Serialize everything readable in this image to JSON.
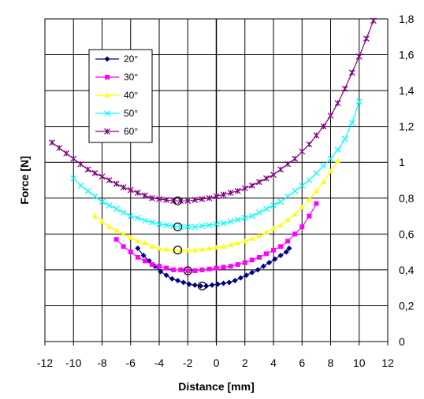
{
  "chart_data": {
    "type": "line",
    "xlabel": "Distance [mm]",
    "ylabel": "Force [N]",
    "xlim": [
      -12,
      12
    ],
    "ylim": [
      0,
      1.8
    ],
    "x_ticks": [
      -12,
      -10,
      -8,
      -6,
      -4,
      -2,
      0,
      2,
      4,
      6,
      8,
      10,
      12
    ],
    "y_ticks": [
      0,
      0.2,
      0.4,
      0.6,
      0.8,
      1,
      1.2,
      1.4,
      1.6,
      1.8
    ],
    "x_tick_labels": [
      "-12",
      "-10",
      "-8",
      "-6",
      "-4",
      "-2",
      "0",
      "2",
      "4",
      "6",
      "8",
      "10",
      "12"
    ],
    "y_tick_labels": [
      "0",
      "0,2",
      "0,4",
      "0,6",
      "0,8",
      "1",
      "1,2",
      "1,4",
      "1,6",
      "1,8"
    ],
    "grid": true,
    "legend_position": "top-left",
    "series": [
      {
        "name": "20°",
        "color": "#000080",
        "marker": "diamond",
        "min_marker": {
          "x": -1.0,
          "y": 0.31
        },
        "points": [
          [
            -5.5,
            0.52
          ],
          [
            -5.1,
            0.48
          ],
          [
            -4.7,
            0.45
          ],
          [
            -4.3,
            0.42
          ],
          [
            -3.9,
            0.39
          ],
          [
            -3.5,
            0.37
          ],
          [
            -3.1,
            0.35
          ],
          [
            -2.7,
            0.34
          ],
          [
            -2.3,
            0.33
          ],
          [
            -1.9,
            0.32
          ],
          [
            -1.5,
            0.315
          ],
          [
            -1.1,
            0.31
          ],
          [
            -0.7,
            0.31
          ],
          [
            -0.3,
            0.315
          ],
          [
            0.1,
            0.32
          ],
          [
            0.5,
            0.325
          ],
          [
            0.9,
            0.33
          ],
          [
            1.3,
            0.34
          ],
          [
            1.7,
            0.355
          ],
          [
            2.1,
            0.37
          ],
          [
            2.5,
            0.385
          ],
          [
            2.9,
            0.4
          ],
          [
            3.3,
            0.42
          ],
          [
            3.7,
            0.44
          ],
          [
            4.1,
            0.46
          ],
          [
            4.5,
            0.48
          ],
          [
            4.9,
            0.5
          ],
          [
            5.1,
            0.52
          ]
        ]
      },
      {
        "name": "30°",
        "color": "#ff00ff",
        "marker": "square",
        "min_marker": {
          "x": -2.0,
          "y": 0.395
        },
        "points": [
          [
            -7.0,
            0.57
          ],
          [
            -6.5,
            0.53
          ],
          [
            -6.0,
            0.5
          ],
          [
            -5.5,
            0.47
          ],
          [
            -5.0,
            0.45
          ],
          [
            -4.5,
            0.43
          ],
          [
            -4.0,
            0.42
          ],
          [
            -3.5,
            0.41
          ],
          [
            -3.0,
            0.4
          ],
          [
            -2.5,
            0.4
          ],
          [
            -2.0,
            0.395
          ],
          [
            -1.5,
            0.395
          ],
          [
            -1.0,
            0.4
          ],
          [
            -0.5,
            0.405
          ],
          [
            0.0,
            0.41
          ],
          [
            0.5,
            0.415
          ],
          [
            1.0,
            0.42
          ],
          [
            1.5,
            0.43
          ],
          [
            2.0,
            0.44
          ],
          [
            2.5,
            0.455
          ],
          [
            3.0,
            0.47
          ],
          [
            3.5,
            0.49
          ],
          [
            4.0,
            0.51
          ],
          [
            4.5,
            0.53
          ],
          [
            5.0,
            0.56
          ],
          [
            5.5,
            0.6
          ],
          [
            6.0,
            0.64
          ],
          [
            6.5,
            0.7
          ],
          [
            7.0,
            0.77
          ]
        ]
      },
      {
        "name": "40°",
        "color": "#ffff00",
        "marker": "triangle",
        "min_marker": {
          "x": -2.7,
          "y": 0.51
        },
        "points": [
          [
            -8.5,
            0.7
          ],
          [
            -8.0,
            0.67
          ],
          [
            -7.5,
            0.64
          ],
          [
            -7.0,
            0.62
          ],
          [
            -6.5,
            0.6
          ],
          [
            -6.0,
            0.58
          ],
          [
            -5.5,
            0.56
          ],
          [
            -5.0,
            0.55
          ],
          [
            -4.5,
            0.53
          ],
          [
            -4.0,
            0.52
          ],
          [
            -3.5,
            0.515
          ],
          [
            -3.0,
            0.51
          ],
          [
            -2.5,
            0.51
          ],
          [
            -2.0,
            0.51
          ],
          [
            -1.5,
            0.51
          ],
          [
            -1.0,
            0.515
          ],
          [
            -0.5,
            0.52
          ],
          [
            0.0,
            0.525
          ],
          [
            0.5,
            0.53
          ],
          [
            1.0,
            0.54
          ],
          [
            1.5,
            0.55
          ],
          [
            2.0,
            0.56
          ],
          [
            2.5,
            0.575
          ],
          [
            3.0,
            0.59
          ],
          [
            3.5,
            0.61
          ],
          [
            4.0,
            0.63
          ],
          [
            4.5,
            0.65
          ],
          [
            5.0,
            0.68
          ],
          [
            5.5,
            0.71
          ],
          [
            6.0,
            0.75
          ],
          [
            6.5,
            0.79
          ],
          [
            7.0,
            0.84
          ],
          [
            7.5,
            0.89
          ],
          [
            8.0,
            0.95
          ],
          [
            8.5,
            1.01
          ]
        ]
      },
      {
        "name": "50°",
        "color": "#00ffff",
        "marker": "x",
        "min_marker": {
          "x": -2.7,
          "y": 0.64
        },
        "points": [
          [
            -10.0,
            0.91
          ],
          [
            -9.5,
            0.87
          ],
          [
            -9.0,
            0.84
          ],
          [
            -8.5,
            0.81
          ],
          [
            -8.0,
            0.78
          ],
          [
            -7.5,
            0.76
          ],
          [
            -7.0,
            0.74
          ],
          [
            -6.5,
            0.72
          ],
          [
            -6.0,
            0.7
          ],
          [
            -5.5,
            0.69
          ],
          [
            -5.0,
            0.675
          ],
          [
            -4.5,
            0.665
          ],
          [
            -4.0,
            0.655
          ],
          [
            -3.5,
            0.65
          ],
          [
            -3.0,
            0.645
          ],
          [
            -2.5,
            0.64
          ],
          [
            -2.0,
            0.64
          ],
          [
            -1.5,
            0.64
          ],
          [
            -1.0,
            0.645
          ],
          [
            -0.5,
            0.65
          ],
          [
            0.0,
            0.655
          ],
          [
            0.5,
            0.66
          ],
          [
            1.0,
            0.67
          ],
          [
            1.5,
            0.68
          ],
          [
            2.0,
            0.69
          ],
          [
            2.5,
            0.7
          ],
          [
            3.0,
            0.72
          ],
          [
            3.5,
            0.74
          ],
          [
            4.0,
            0.76
          ],
          [
            4.5,
            0.78
          ],
          [
            5.0,
            0.81
          ],
          [
            5.5,
            0.84
          ],
          [
            6.0,
            0.87
          ],
          [
            6.5,
            0.9
          ],
          [
            7.0,
            0.94
          ],
          [
            7.5,
            0.98
          ],
          [
            8.0,
            1.02
          ],
          [
            8.5,
            1.07
          ],
          [
            9.0,
            1.13
          ],
          [
            9.5,
            1.22
          ],
          [
            10.0,
            1.34
          ]
        ]
      },
      {
        "name": "60°",
        "color": "#800080",
        "marker": "star",
        "min_marker": {
          "x": -2.7,
          "y": 0.785
        },
        "points": [
          [
            -11.5,
            1.11
          ],
          [
            -11.0,
            1.08
          ],
          [
            -10.5,
            1.05
          ],
          [
            -10.0,
            1.02
          ],
          [
            -9.5,
            0.99
          ],
          [
            -9.0,
            0.96
          ],
          [
            -8.5,
            0.94
          ],
          [
            -8.0,
            0.92
          ],
          [
            -7.5,
            0.9
          ],
          [
            -7.0,
            0.88
          ],
          [
            -6.5,
            0.86
          ],
          [
            -6.0,
            0.845
          ],
          [
            -5.5,
            0.83
          ],
          [
            -5.0,
            0.815
          ],
          [
            -4.5,
            0.8
          ],
          [
            -4.0,
            0.795
          ],
          [
            -3.5,
            0.79
          ],
          [
            -3.0,
            0.785
          ],
          [
            -2.5,
            0.785
          ],
          [
            -2.0,
            0.785
          ],
          [
            -1.5,
            0.79
          ],
          [
            -1.0,
            0.795
          ],
          [
            -0.5,
            0.8
          ],
          [
            0.0,
            0.81
          ],
          [
            0.5,
            0.82
          ],
          [
            1.0,
            0.83
          ],
          [
            1.5,
            0.84
          ],
          [
            2.0,
            0.855
          ],
          [
            2.5,
            0.87
          ],
          [
            3.0,
            0.89
          ],
          [
            3.5,
            0.91
          ],
          [
            4.0,
            0.93
          ],
          [
            4.5,
            0.96
          ],
          [
            5.0,
            0.99
          ],
          [
            5.5,
            1.02
          ],
          [
            6.0,
            1.06
          ],
          [
            6.5,
            1.1
          ],
          [
            7.0,
            1.15
          ],
          [
            7.5,
            1.2
          ],
          [
            8.0,
            1.26
          ],
          [
            8.5,
            1.33
          ],
          [
            9.0,
            1.41
          ],
          [
            9.5,
            1.5
          ],
          [
            10.0,
            1.59
          ],
          [
            10.5,
            1.69
          ],
          [
            11.0,
            1.79
          ]
        ]
      }
    ]
  }
}
